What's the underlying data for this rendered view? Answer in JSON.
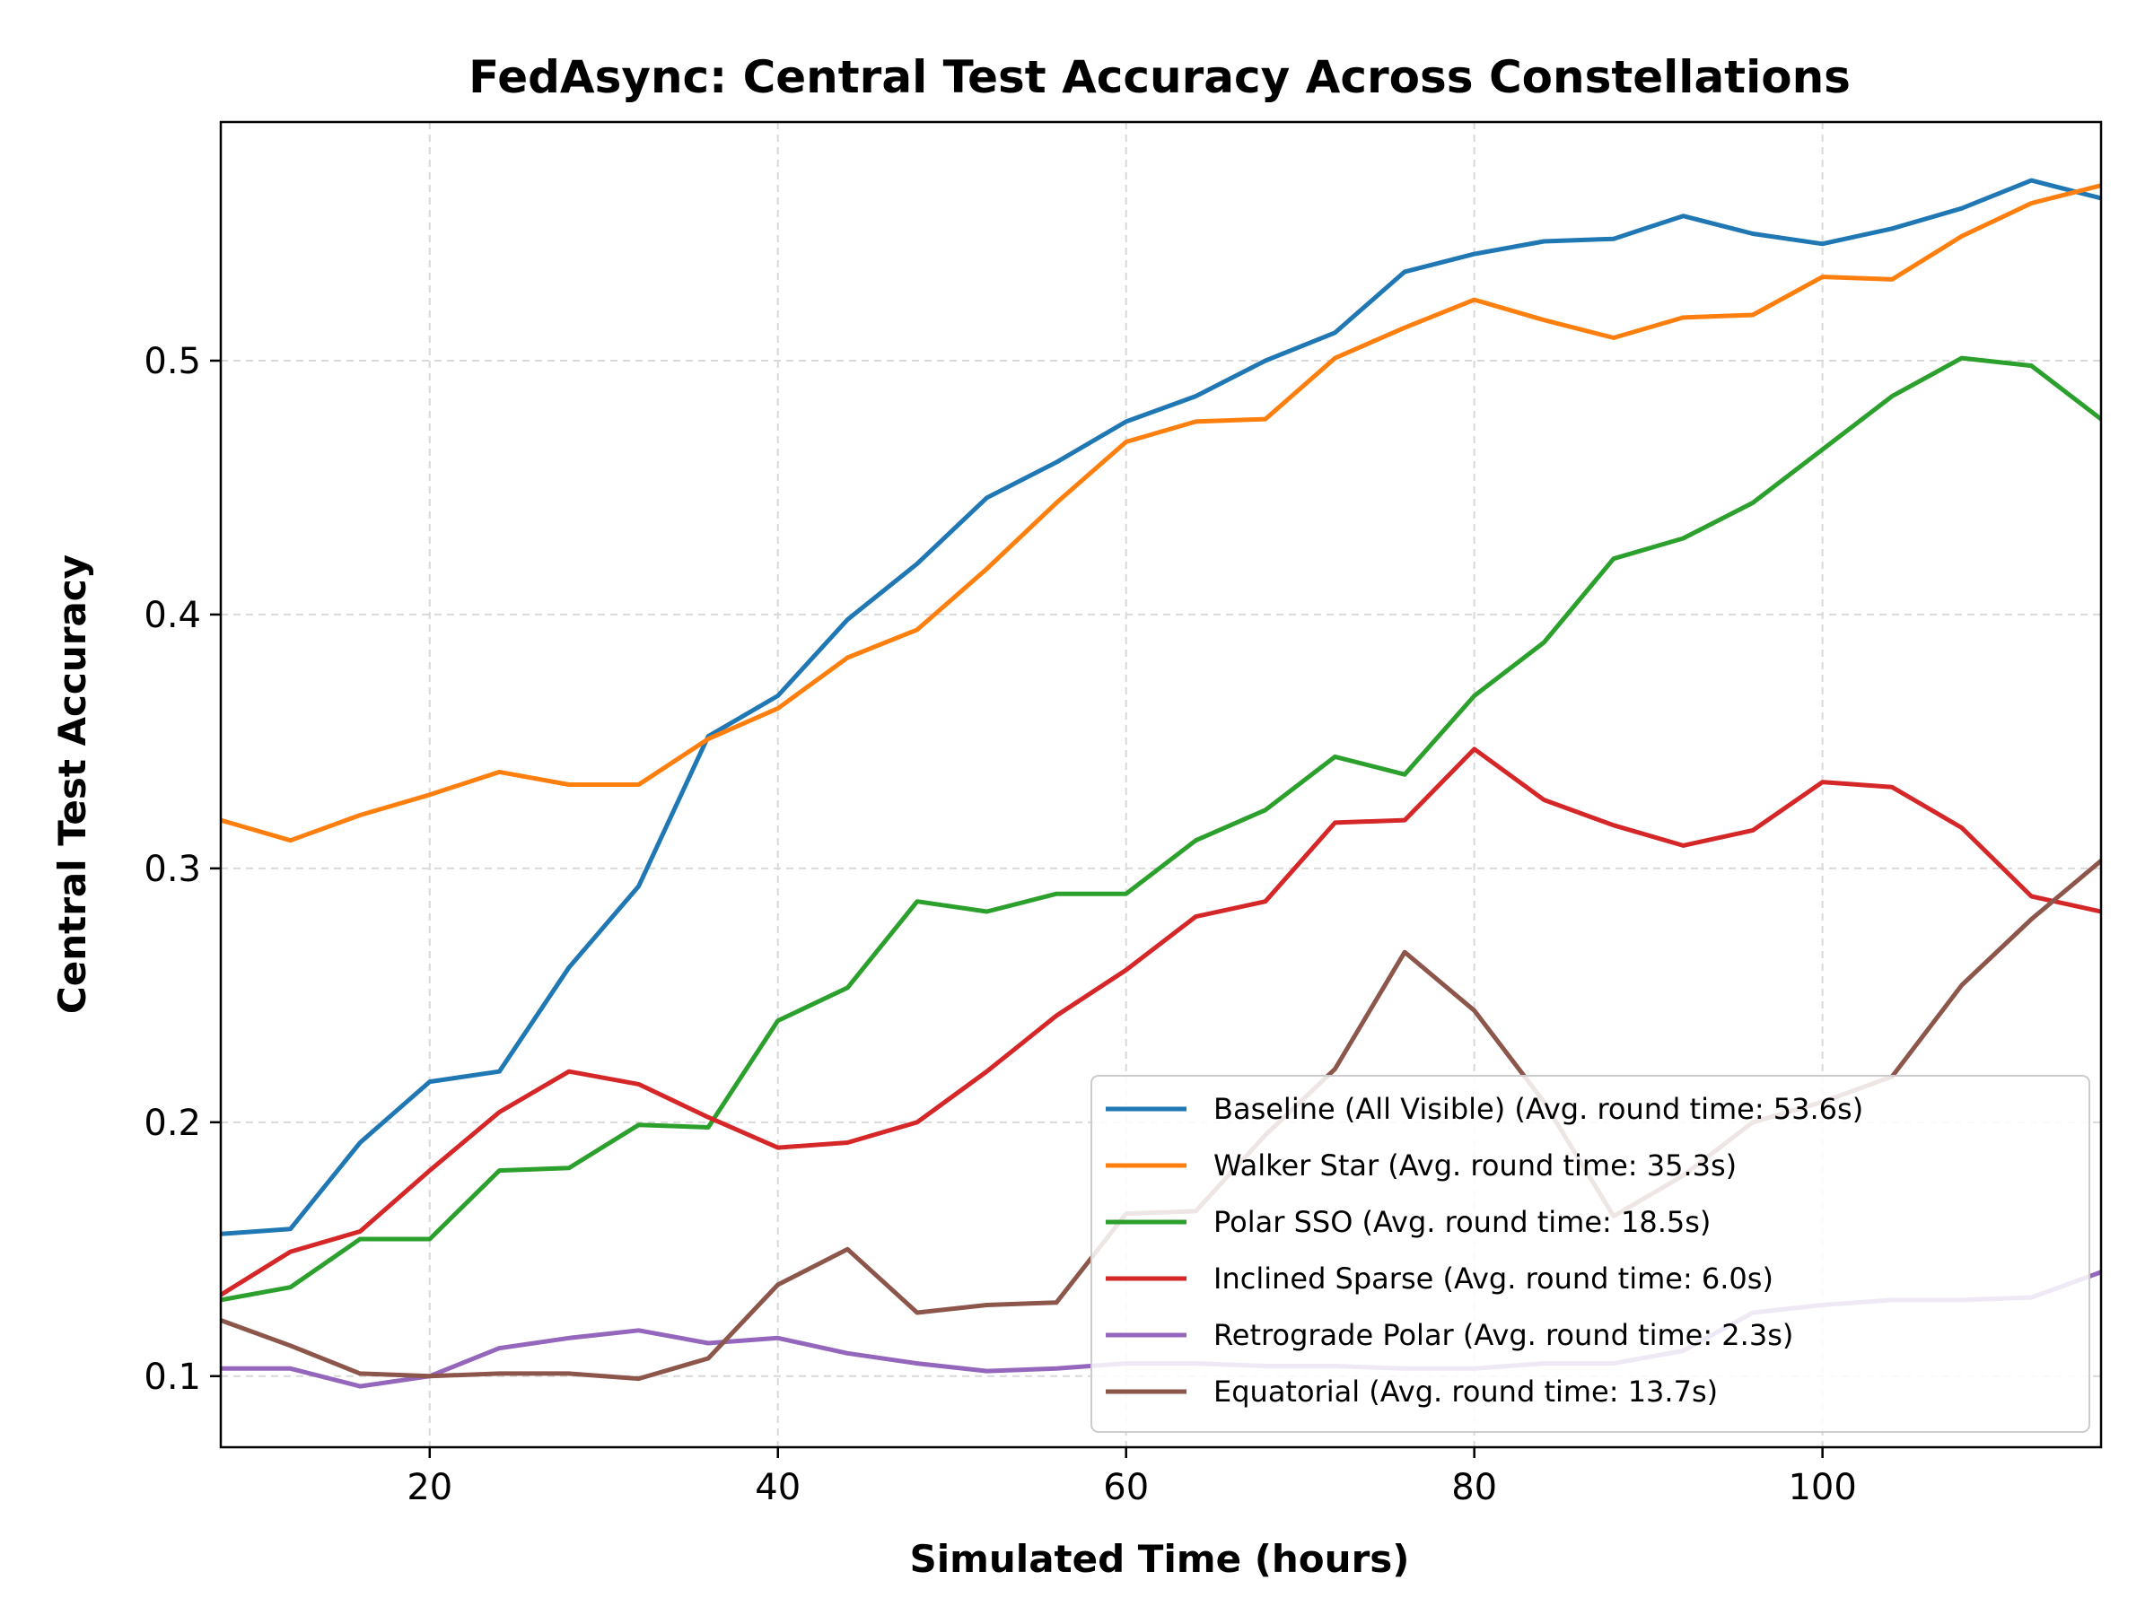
{
  "chart_data": {
    "type": "line",
    "title": "FedAsync: Central Test Accuracy Across Constellations",
    "xlabel": "Simulated Time (hours)",
    "ylabel": "Central Test Accuracy",
    "xlim": [
      8,
      116
    ],
    "ylim": [
      0.072,
      0.594
    ],
    "xticks": [
      20,
      40,
      60,
      80,
      100
    ],
    "yticks": [
      0.1,
      0.2,
      0.3,
      0.4,
      0.5
    ],
    "grid": true,
    "legend_position": "lower right",
    "x": [
      8,
      12,
      16,
      20,
      24,
      28,
      32,
      36,
      40,
      44,
      48,
      52,
      56,
      60,
      64,
      68,
      72,
      76,
      80,
      84,
      88,
      92,
      96,
      100,
      104,
      108,
      112,
      116
    ],
    "series": [
      {
        "name": "Baseline (All Visible) (Avg. round time: 53.6s)",
        "color": "#1f77b4",
        "values": [
          0.156,
          0.158,
          0.192,
          0.216,
          0.22,
          0.261,
          0.293,
          0.352,
          0.368,
          0.398,
          0.42,
          0.446,
          0.46,
          0.476,
          0.486,
          0.5,
          0.511,
          0.535,
          0.542,
          0.547,
          0.548,
          0.557,
          0.55,
          0.546,
          0.552,
          0.56,
          0.571,
          0.564
        ]
      },
      {
        "name": "Walker Star (Avg. round time: 35.3s)",
        "color": "#ff7f0e",
        "values": [
          0.319,
          0.311,
          0.321,
          0.329,
          0.338,
          0.333,
          0.333,
          0.351,
          0.363,
          0.383,
          0.394,
          0.418,
          0.444,
          0.468,
          0.476,
          0.477,
          0.501,
          0.513,
          0.524,
          0.516,
          0.509,
          0.517,
          0.518,
          0.533,
          0.532,
          0.549,
          0.562,
          0.569
        ]
      },
      {
        "name": "Polar SSO (Avg. round time: 18.5s)",
        "color": "#2ca02c",
        "values": [
          0.13,
          0.135,
          0.154,
          0.154,
          0.181,
          0.182,
          0.199,
          0.198,
          0.24,
          0.253,
          0.287,
          0.283,
          0.29,
          0.29,
          0.311,
          0.323,
          0.344,
          0.337,
          0.368,
          0.389,
          0.422,
          0.43,
          0.444,
          0.465,
          0.486,
          0.501,
          0.498,
          0.477
        ]
      },
      {
        "name": "Inclined Sparse (Avg. round time: 6.0s)",
        "color": "#d62728",
        "values": [
          0.132,
          0.149,
          0.157,
          0.181,
          0.204,
          0.22,
          0.215,
          0.202,
          0.19,
          0.192,
          0.2,
          0.22,
          0.242,
          0.26,
          0.281,
          0.287,
          0.318,
          0.319,
          0.347,
          0.327,
          0.317,
          0.309,
          0.315,
          0.334,
          0.332,
          0.316,
          0.289,
          0.283
        ]
      },
      {
        "name": "Retrograde Polar (Avg. round time: 2.3s)",
        "color": "#9467bd",
        "values": [
          0.103,
          0.103,
          0.096,
          0.1,
          0.111,
          0.115,
          0.118,
          0.113,
          0.115,
          0.109,
          0.105,
          0.102,
          0.103,
          0.105,
          0.105,
          0.104,
          0.104,
          0.103,
          0.103,
          0.105,
          0.105,
          0.11,
          0.125,
          0.128,
          0.13,
          0.13,
          0.131,
          0.141
        ]
      },
      {
        "name": "Equatorial (Avg. round time: 13.7s)",
        "color": "#8c564b",
        "values": [
          0.122,
          0.112,
          0.101,
          0.1,
          0.101,
          0.101,
          0.099,
          0.107,
          0.136,
          0.15,
          0.125,
          0.128,
          0.129,
          0.164,
          0.165,
          0.195,
          0.221,
          0.267,
          0.244,
          0.208,
          0.163,
          0.179,
          0.2,
          0.208,
          0.218,
          0.254,
          0.28,
          0.303
        ]
      }
    ]
  }
}
